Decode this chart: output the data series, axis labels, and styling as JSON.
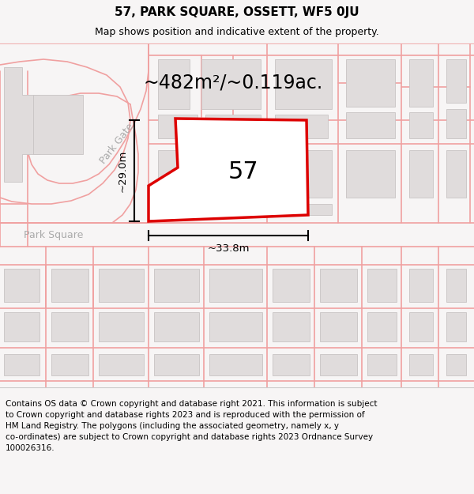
{
  "title": "57, PARK SQUARE, OSSETT, WF5 0JU",
  "subtitle": "Map shows position and indicative extent of the property.",
  "area_label": "~482m²/~0.119ac.",
  "number_label": "57",
  "dim_width": "~33.8m",
  "dim_height": "~29.0m",
  "street_label_gate": "Park Gate",
  "street_label_square": "Park Square",
  "footer_lines": [
    "Contains OS data © Crown copyright and database right 2021. This information is subject to Crown copyright and database rights 2023 and is reproduced with the permission of",
    "HM Land Registry. The polygons (including the associated geometry, namely x, y",
    "co-ordinates) are subject to Crown copyright and database rights 2023 Ordnance Survey",
    "100026316."
  ],
  "map_bg": "#f7f5f5",
  "plot_fill": "#ffffff",
  "plot_edge": "#dd0000",
  "road_fill": "#ffffff",
  "road_line_color": "#f0a0a0",
  "building_fill": "#e0dcdc",
  "building_edge": "#c8c4c4",
  "title_fontsize": 11,
  "subtitle_fontsize": 9,
  "area_fontsize": 17,
  "number_fontsize": 22,
  "dim_fontsize": 9.5,
  "street_fontsize": 9,
  "footer_fontsize": 7.5
}
